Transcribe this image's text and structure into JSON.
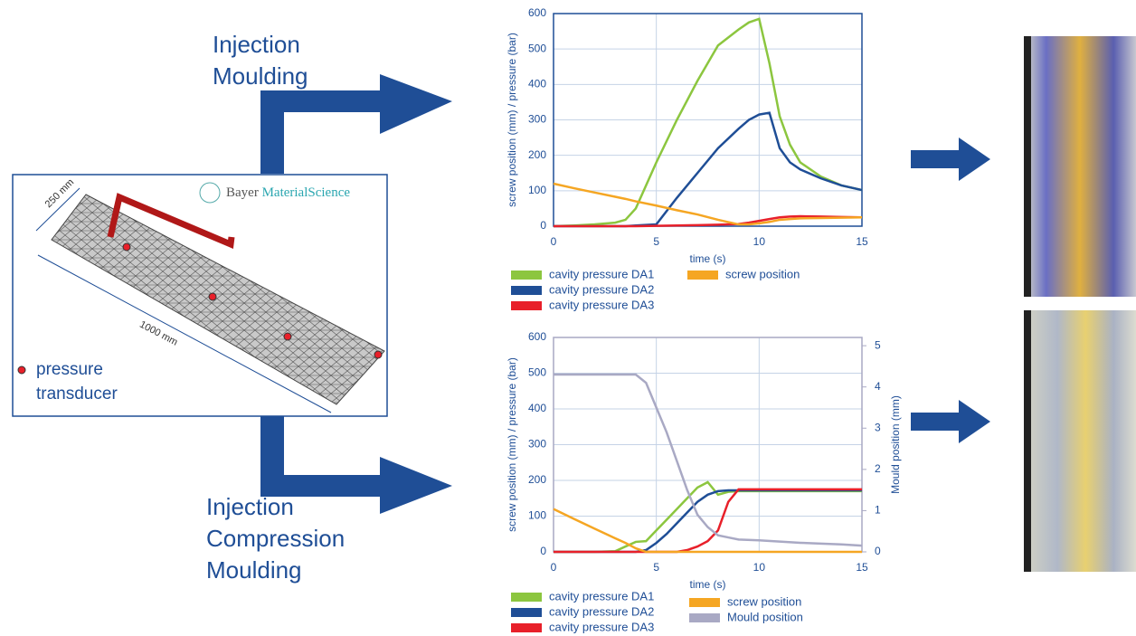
{
  "diagram": {
    "flow_top": [
      "Injection",
      "Moulding"
    ],
    "flow_bottom": [
      "Injection",
      "Compression",
      "Moulding"
    ],
    "logo": [
      "Bayer",
      "MaterialScience"
    ],
    "dim_width": "250 mm",
    "dim_length": "1000 mm",
    "marker_legend": [
      "pressure",
      "transducer"
    ]
  },
  "chart_data": [
    {
      "type": "line",
      "x_label": "time (s)",
      "y_label": "screw position (mm) / pressure (bar)",
      "x": [
        0,
        1,
        2,
        3,
        3.5,
        4,
        5,
        6,
        7,
        8,
        9,
        9.5,
        10,
        10.5,
        11,
        11.5,
        12,
        13,
        14,
        15
      ],
      "xlim": [
        0,
        15
      ],
      "xticks": [
        0,
        5,
        10,
        15
      ],
      "ylim": [
        0,
        600
      ],
      "yticks": [
        0,
        100,
        200,
        300,
        400,
        500,
        600
      ],
      "grid": true,
      "series": [
        {
          "name": "cavity pressure DA1",
          "color": "#8cc63f",
          "values": [
            0,
            2,
            5,
            10,
            18,
            50,
            180,
            300,
            410,
            510,
            555,
            575,
            585,
            460,
            310,
            230,
            180,
            140,
            115,
            102
          ]
        },
        {
          "name": "cavity pressure DA2",
          "color": "#1f4e96",
          "values": [
            0,
            0,
            0,
            0,
            0,
            2,
            5,
            80,
            150,
            220,
            275,
            300,
            315,
            320,
            220,
            180,
            160,
            135,
            115,
            102
          ]
        },
        {
          "name": "cavity pressure DA3",
          "color": "#e8202a",
          "values": [
            0,
            0,
            0,
            0,
            0,
            0,
            1,
            2,
            3,
            4,
            6,
            10,
            15,
            20,
            25,
            27,
            28,
            27,
            26,
            25
          ]
        },
        {
          "name": "screw position",
          "color": "#f5a623",
          "values": [
            120,
            107,
            95,
            83,
            77,
            70,
            58,
            45,
            33,
            18,
            5,
            5,
            8,
            12,
            18,
            20,
            22,
            23,
            24,
            25
          ]
        }
      ]
    },
    {
      "type": "line",
      "x_label": "time (s)",
      "y_label": "screw position (mm) / pressure (bar)",
      "y2_label": "Mould position  (mm)",
      "x": [
        0,
        1,
        2,
        3,
        3.5,
        4,
        4.5,
        5,
        5.5,
        6,
        6.5,
        7,
        7.5,
        8,
        8.5,
        9,
        10,
        11,
        12,
        13,
        14,
        15
      ],
      "xlim": [
        0,
        15
      ],
      "xticks": [
        0,
        5,
        10,
        15
      ],
      "ylim": [
        0,
        600
      ],
      "yticks": [
        0,
        100,
        200,
        300,
        400,
        500,
        600
      ],
      "y2lim": [
        0,
        5.2
      ],
      "y2ticks": [
        0,
        1,
        2,
        3,
        4,
        5
      ],
      "grid": true,
      "series": [
        {
          "name": "cavity pressure DA1",
          "color": "#8cc63f",
          "values": [
            0,
            0,
            0,
            2,
            15,
            28,
            30,
            60,
            90,
            120,
            150,
            180,
            195,
            160,
            168,
            170,
            170,
            170,
            170,
            170,
            170,
            170
          ]
        },
        {
          "name": "cavity pressure DA2",
          "color": "#1f4e96",
          "values": [
            0,
            0,
            0,
            0,
            0,
            0,
            5,
            25,
            50,
            80,
            110,
            140,
            160,
            170,
            172,
            172,
            172,
            172,
            172,
            172,
            172,
            172
          ]
        },
        {
          "name": "cavity pressure DA3",
          "color": "#e8202a",
          "values": [
            0,
            0,
            0,
            0,
            0,
            0,
            0,
            0,
            0,
            0,
            5,
            15,
            30,
            60,
            140,
            175,
            175,
            175,
            175,
            175,
            175,
            175
          ]
        },
        {
          "name": "screw position",
          "color": "#f5a623",
          "values": [
            120,
            92,
            65,
            38,
            25,
            10,
            0,
            0,
            0,
            0,
            0,
            0,
            0,
            0,
            0,
            0,
            0,
            0,
            0,
            0,
            0,
            0
          ]
        },
        {
          "name": "Mould position",
          "color": "#a9a9c4",
          "axis": "y2",
          "values": [
            4.3,
            4.3,
            4.3,
            4.3,
            4.3,
            4.3,
            4.1,
            3.5,
            2.9,
            2.2,
            1.5,
            0.9,
            0.6,
            0.4,
            0.35,
            0.3,
            0.28,
            0.25,
            0.22,
            0.2,
            0.18,
            0.15
          ]
        }
      ]
    }
  ]
}
